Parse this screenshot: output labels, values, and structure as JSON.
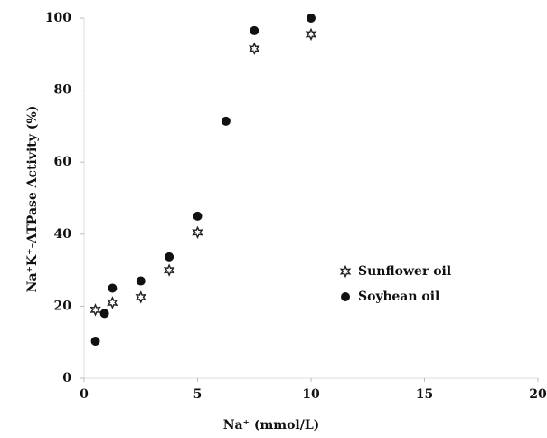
{
  "chart_data": {
    "type": "scatter",
    "xlabel": "Na⁺ (mmol/L)",
    "ylabel": "Na⁺K⁺-ATPase Activity (%)",
    "xlim": [
      0,
      20
    ],
    "xticks": [
      0,
      5,
      10,
      15,
      20
    ],
    "ylim": [
      0,
      100
    ],
    "yticks": [
      0,
      20,
      40,
      60,
      80,
      100
    ],
    "legend": "right",
    "series": [
      {
        "name": "Sunflower oil",
        "color": "#222",
        "marker": "star",
        "x": [
          0.5,
          1.25,
          2.5,
          3.75,
          5,
          7.5,
          10
        ],
        "values": [
          19,
          21,
          22.5,
          30,
          40.5,
          91.5,
          95.5
        ]
      },
      {
        "name": "Soybean oil",
        "color": "#111",
        "marker": "circle",
        "x": [
          0.5,
          0.9,
          1.25,
          2.5,
          3.75,
          5,
          6.25,
          7.5,
          10
        ],
        "values": [
          10.3,
          18,
          25,
          27,
          33.7,
          45,
          71.4,
          96.5,
          100
        ]
      }
    ]
  }
}
